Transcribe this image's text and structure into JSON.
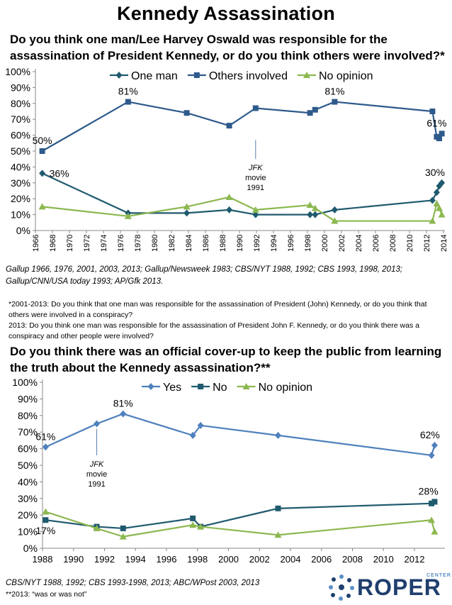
{
  "page": {
    "title": "Kennedy Assassination",
    "question1": "Do you think one man/Lee Harvey Oswald was responsible for the assassination  of President Kennedy, or do you think others were involved?*",
    "source1": "Gallup 1966, 1976, 2001, 2003, 2013; Gallup/Newsweek 1983; CBS/NYT 1988, 1992; CBS 1993, 1998, 2013; Gallup/CNN/USA today 1993; AP/Gfk 2013.",
    "note1_line1": "*2001-2013:  Do you think that one man was responsible for the assassination of President (John) Kennedy, or do you think that others were involved in a conspiracy?",
    "note1_line2": "2013:  Do you think one man was responsible for the assassination of President John F. Kennedy, or do you think there was a conspiracy and other people were involved?",
    "question2": "Do you think there was an official cover-up to keep the public from learning the truth about the Kennedy assassination?**",
    "source2": "CBS/NYT 1988, 1992; CBS 1993-1998, 2013; ABC/WPost 2003, 2013",
    "note2": "**2013:  “was or was not”",
    "logo_text": "ROPER",
    "logo_sub": "CENTER"
  },
  "chart_data": [
    {
      "type": "line",
      "xlim": [
        1966,
        2014
      ],
      "ylim": [
        0,
        100
      ],
      "x_ticks": [
        1966,
        1968,
        1970,
        1972,
        1974,
        1976,
        1978,
        1980,
        1982,
        1984,
        1986,
        1988,
        1990,
        1992,
        1994,
        1996,
        1998,
        2000,
        2002,
        2004,
        2006,
        2008,
        2010,
        2012,
        2014
      ],
      "y_ticks": [
        0,
        10,
        20,
        30,
        40,
        50,
        60,
        70,
        80,
        90,
        100
      ],
      "y_tick_labels": [
        "0%",
        "10%",
        "20%",
        "30%",
        "40%",
        "50%",
        "60%",
        "70%",
        "80%",
        "90%",
        "100%"
      ],
      "legend_position": "top",
      "grid": false,
      "series": [
        {
          "name": "One man",
          "color": "#1f5a6e",
          "marker": "diamond",
          "x": [
            1966.8,
            1976.9,
            1983.8,
            1988.8,
            1991.9,
            1998.3,
            1998.9,
            2001.2,
            2012.7,
            2013.2,
            2013.5,
            2013.8
          ],
          "y": [
            36,
            11,
            11,
            13,
            10,
            10,
            10,
            13,
            19,
            24,
            28,
            30
          ]
        },
        {
          "name": "Others involved",
          "color": "#2e5a8c",
          "marker": "square",
          "x": [
            1966.8,
            1976.9,
            1983.8,
            1988.8,
            1991.9,
            1998.3,
            1998.9,
            2001.2,
            2012.7,
            2013.2,
            2013.5,
            2013.8
          ],
          "y": [
            50,
            81,
            74,
            66,
            77,
            74,
            76,
            81,
            75,
            59,
            58,
            61
          ]
        },
        {
          "name": "No opinion",
          "color": "#8cb850",
          "marker": "triangle",
          "x": [
            1966.8,
            1976.9,
            1983.8,
            1988.8,
            1991.9,
            1998.3,
            1998.9,
            2001.2,
            2012.7,
            2013.2,
            2013.5,
            2013.8
          ],
          "y": [
            15,
            9,
            15,
            21,
            13,
            16,
            14,
            6,
            6,
            17,
            14,
            10
          ]
        }
      ],
      "data_labels": [
        {
          "text": "50%",
          "x": 1966.8,
          "y": 50,
          "pos": "above"
        },
        {
          "text": "81%",
          "x": 1976.9,
          "y": 81,
          "pos": "above"
        },
        {
          "text": "81%",
          "x": 2001.2,
          "y": 81,
          "pos": "above"
        },
        {
          "text": "61%",
          "x": 2013.2,
          "y": 61,
          "pos": "above"
        },
        {
          "text": "36%",
          "x": 1966.8,
          "y": 36,
          "pos": "right"
        },
        {
          "text": "30%",
          "x": 2013.0,
          "y": 30,
          "pos": "above"
        }
      ],
      "annotation": {
        "lines": [
          "JFK",
          "movie",
          "1991"
        ],
        "x": 1991.9,
        "y_top": 57,
        "y_bottom": 45
      }
    },
    {
      "type": "line",
      "xlim": [
        1988,
        2013.6
      ],
      "ylim": [
        0,
        100
      ],
      "x_ticks": [
        1988,
        1990,
        1992,
        1994,
        1996,
        1998,
        2000,
        2002,
        2004,
        2006,
        2008,
        2010,
        2012
      ],
      "y_ticks": [
        0,
        10,
        20,
        30,
        40,
        50,
        60,
        70,
        80,
        90,
        100
      ],
      "y_tick_labels": [
        "0%",
        "10%",
        "20%",
        "30%",
        "40%",
        "50%",
        "60%",
        "70%",
        "80%",
        "90%",
        "100%"
      ],
      "legend_position": "top",
      "grid": false,
      "series": [
        {
          "name": "Yes",
          "color": "#4f81bd",
          "marker": "diamond",
          "x": [
            1988.2,
            1991.5,
            1993.2,
            1997.7,
            1998.2,
            2003.2,
            2013.1,
            2013.3
          ],
          "y": [
            61,
            75,
            81,
            68,
            74,
            68,
            56,
            62
          ]
        },
        {
          "name": "No",
          "color": "#1f5a6e",
          "marker": "square",
          "x": [
            1988.2,
            1991.5,
            1993.2,
            1997.7,
            1998.2,
            2003.2,
            2013.1,
            2013.3
          ],
          "y": [
            17,
            13,
            12,
            18,
            13,
            24,
            27,
            28
          ]
        },
        {
          "name": "No opinion",
          "color": "#8cb850",
          "marker": "triangle",
          "x": [
            1988.2,
            1991.5,
            1993.2,
            1997.7,
            1998.2,
            2003.2,
            2013.1,
            2013.3
          ],
          "y": [
            22,
            12,
            7,
            14,
            13,
            8,
            17,
            10
          ]
        }
      ],
      "data_labels": [
        {
          "text": "61%",
          "x": 1988.2,
          "y": 61,
          "pos": "above"
        },
        {
          "text": "81%",
          "x": 1993.2,
          "y": 81,
          "pos": "above"
        },
        {
          "text": "62%",
          "x": 2013.0,
          "y": 62,
          "pos": "above"
        },
        {
          "text": "28%",
          "x": 2012.9,
          "y": 28,
          "pos": "above"
        },
        {
          "text": "17%",
          "x": 1988.2,
          "y": 17,
          "pos": "below"
        }
      ],
      "annotation": {
        "lines": [
          "JFK",
          "movie",
          "1991"
        ],
        "x": 1991.5,
        "y_top": 72,
        "y_bottom": 56
      }
    }
  ]
}
